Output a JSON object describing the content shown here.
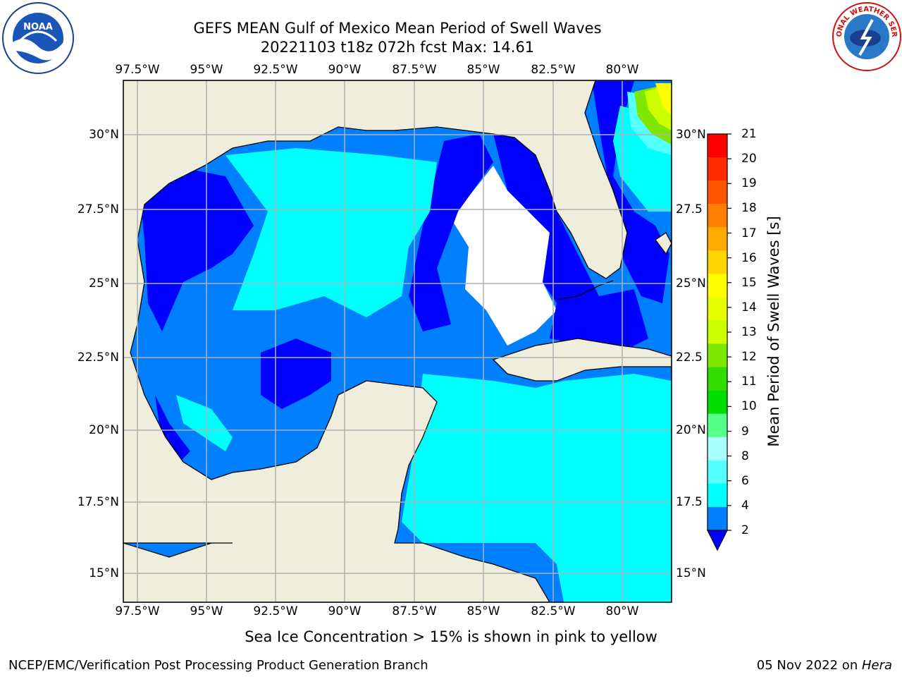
{
  "title": {
    "line1": "GEFS MEAN Gulf of Mexico Mean Period of Swell Waves",
    "line2": "20221103 t18z 072h fcst   Max: 14.61"
  },
  "map": {
    "lon_labels": [
      "97.5°W",
      "95°W",
      "92.5°W",
      "90°W",
      "87.5°W",
      "85°W",
      "82.5°W",
      "80°W"
    ],
    "lat_labels_left": [
      "30°N",
      "27.5°N",
      "25°N",
      "22.5°N",
      "20°N",
      "17.5°N",
      "15°N"
    ],
    "lat_labels_right": [
      "30°N",
      "27.5",
      "25°N",
      "22.5",
      "20°N",
      "17.5",
      "15°N"
    ],
    "land_color": "#efeddc",
    "ocean_colors": {
      "c2_4": "#0000ff",
      "c4_6": "#0080ff",
      "c6_8": "#00ffff",
      "c8_9": "#55ffff",
      "c9_10": "#99ffdd"
    }
  },
  "colorbar": {
    "label": "Mean Period of Swell Waves [s]",
    "ticks": [
      "21",
      "20",
      "19",
      "18",
      "17",
      "16",
      "15",
      "14",
      "13",
      "12",
      "11",
      "10",
      "9",
      "8",
      "6",
      "4",
      "2"
    ],
    "colors": [
      "#ff0000",
      "#ff2a00",
      "#ff5500",
      "#ff8000",
      "#ffaa00",
      "#ffd500",
      "#ffff00",
      "#e6ff00",
      "#ccff00",
      "#7fe600",
      "#33dd00",
      "#00dd00",
      "#55ff88",
      "#aaffff",
      "#55ffff",
      "#00ffff",
      "#0080ff",
      "#0000ff"
    ]
  },
  "footer": {
    "note": "Sea Ice Concentration > 15% is shown in pink to yellow",
    "credit": "NCEP/EMC/Verification Post Processing Product Generation Branch",
    "date": "05 Nov 2022 on ",
    "machine": "Hera"
  },
  "logos": {
    "left": "NOAA",
    "right": "NATIONAL WEATHER SERVICE"
  }
}
